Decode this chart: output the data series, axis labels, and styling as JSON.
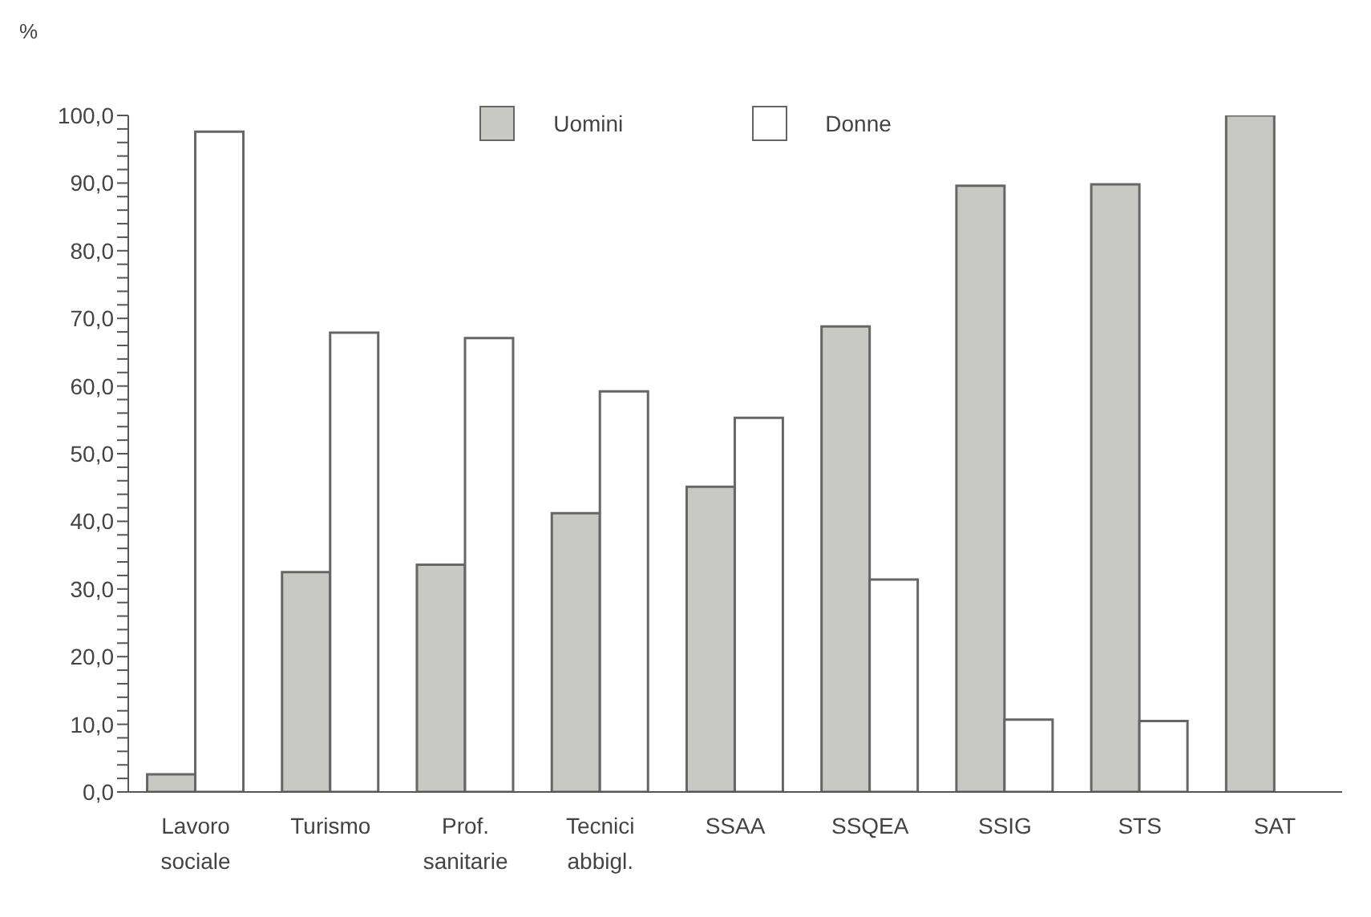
{
  "chart_data": {
    "type": "bar",
    "ylabel": "%",
    "categories": [
      "Lavoro sociale",
      "Turismo",
      "Prof. sanitarie",
      "Tecnici abbigl.",
      "SSAA",
      "SSQEA",
      "SSIG",
      "STS",
      "SAT"
    ],
    "series": [
      {
        "name": "Uomini",
        "color": "#c8c8c4",
        "values": [
          2.6,
          32.5,
          33.6,
          41.2,
          45.1,
          68.8,
          89.6,
          89.8,
          100
        ]
      },
      {
        "name": "Donne",
        "color": "#ffffff",
        "values": [
          97.6,
          67.9,
          67.1,
          59.2,
          55.3,
          31.4,
          10.7,
          10.5,
          0
        ]
      }
    ],
    "ylim": [
      0,
      100
    ],
    "yticks": [
      {
        "value": 0,
        "label": "0,0"
      },
      {
        "value": 2,
        "label": null
      },
      {
        "value": 4,
        "label": null
      },
      {
        "value": 6,
        "label": null
      },
      {
        "value": 8,
        "label": null
      },
      {
        "value": 10,
        "label": "10,0"
      },
      {
        "value": 12,
        "label": null
      },
      {
        "value": 14,
        "label": null
      },
      {
        "value": 16,
        "label": null
      },
      {
        "value": 18,
        "label": null
      },
      {
        "value": 20,
        "label": "20,0"
      },
      {
        "value": 22,
        "label": null
      },
      {
        "value": 24,
        "label": null
      },
      {
        "value": 26,
        "label": null
      },
      {
        "value": 28,
        "label": null
      },
      {
        "value": 30,
        "label": "30,0"
      },
      {
        "value": 32,
        "label": null
      },
      {
        "value": 34,
        "label": null
      },
      {
        "value": 36,
        "label": null
      },
      {
        "value": 38,
        "label": null
      },
      {
        "value": 40,
        "label": "40,0"
      },
      {
        "value": 42,
        "label": null
      },
      {
        "value": 44,
        "label": null
      },
      {
        "value": 46,
        "label": null
      },
      {
        "value": 48,
        "label": null
      },
      {
        "value": 50,
        "label": "50,0"
      },
      {
        "value": 52,
        "label": null
      },
      {
        "value": 54,
        "label": null
      },
      {
        "value": 56,
        "label": null
      },
      {
        "value": 58,
        "label": null
      },
      {
        "value": 60,
        "label": "60,0"
      },
      {
        "value": 62,
        "label": null
      },
      {
        "value": 64,
        "label": null
      },
      {
        "value": 66,
        "label": null
      },
      {
        "value": 68,
        "label": null
      },
      {
        "value": 70,
        "label": "70,0"
      },
      {
        "value": 72,
        "label": null
      },
      {
        "value": 74,
        "label": null
      },
      {
        "value": 76,
        "label": null
      },
      {
        "value": 78,
        "label": null
      },
      {
        "value": 80,
        "label": "80,0"
      },
      {
        "value": 82,
        "label": null
      },
      {
        "value": 84,
        "label": null
      },
      {
        "value": 86,
        "label": null
      },
      {
        "value": 88,
        "label": null
      },
      {
        "value": 90,
        "label": "90,0"
      },
      {
        "value": 92,
        "label": null
      },
      {
        "value": 94,
        "label": null
      },
      {
        "value": 96,
        "label": null
      },
      {
        "value": 98,
        "label": null
      },
      {
        "value": 100,
        "label": "100,0"
      }
    ],
    "legend": "top",
    "grid": false
  }
}
